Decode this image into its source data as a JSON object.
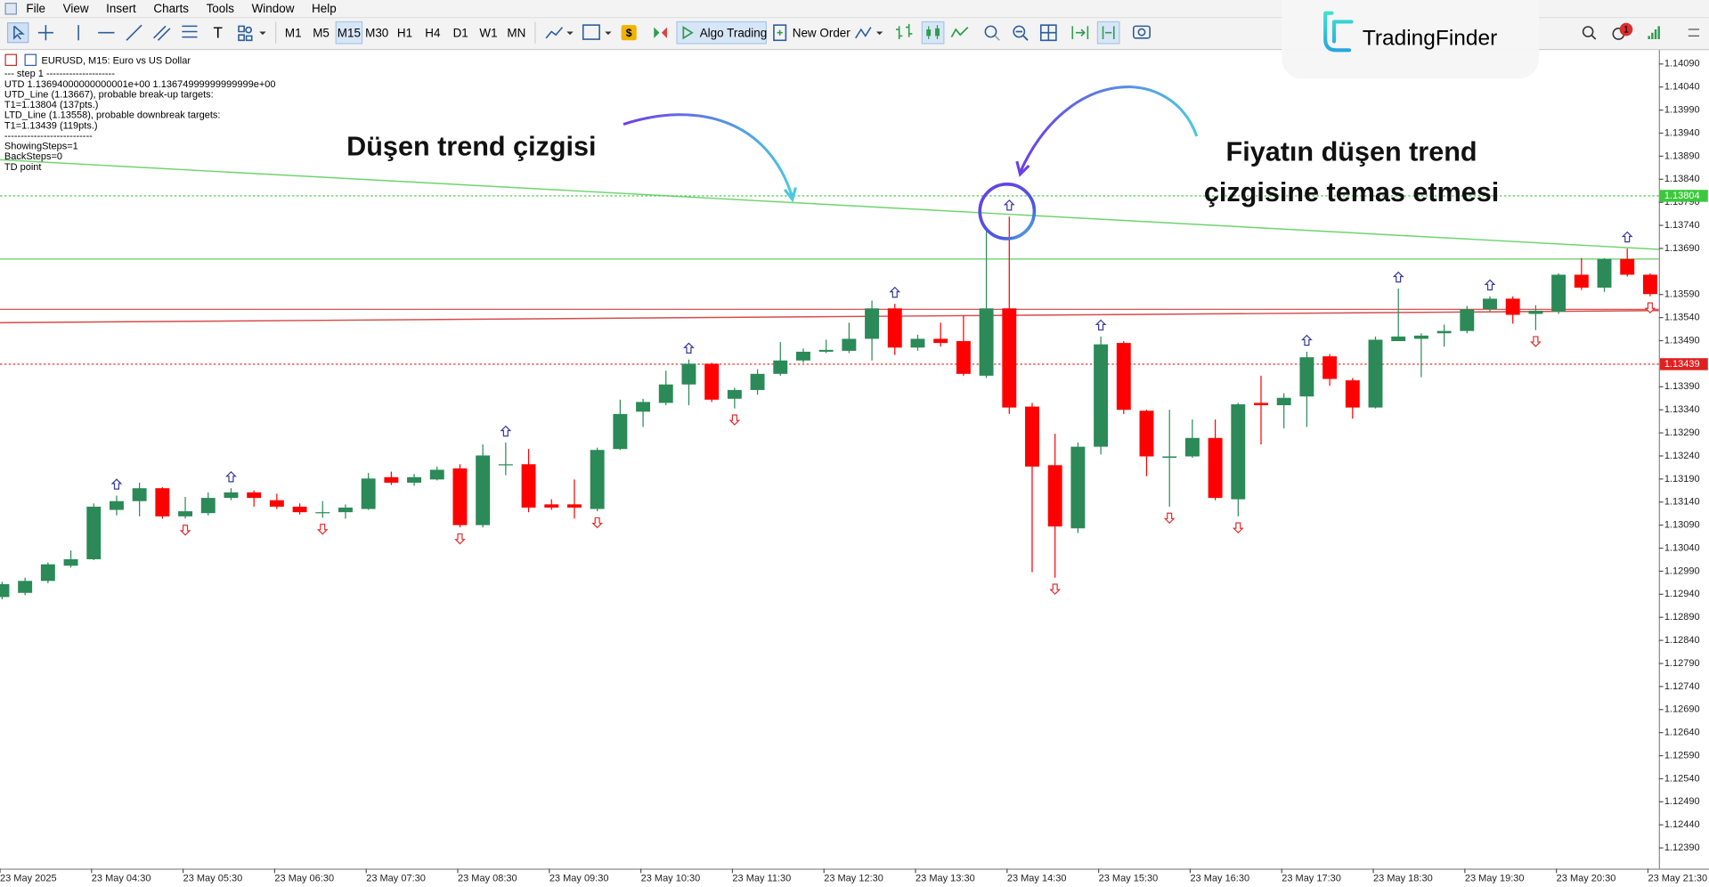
{
  "menu": [
    "File",
    "View",
    "Insert",
    "Charts",
    "Tools",
    "Window",
    "Help"
  ],
  "toolbar": {
    "timeframes": [
      "M1",
      "M5",
      "M15",
      "M30",
      "H1",
      "H4",
      "D1",
      "W1",
      "MN"
    ],
    "active_timeframe": 2,
    "algo": "Algo Trading",
    "order": "New Order",
    "notification_count": 1
  },
  "logo": "TradingFinder",
  "chart_data": {
    "type": "candlestick",
    "symbol_title": "EURUSD, M15:  Euro vs US Dollar",
    "info_lines": [
      "---   step 1   ---------------------",
      "UTD 1.13694000000000001e+00  1.13674999999999999e+00",
      "UTD_Line (1.13667), probable break-up targets:",
      "T1=1.13804 (137pts.)",
      "LTD_Line (1.13558), probable downbreak targets:",
      "T1=1.13439 (119pts.)",
      "---------------------------",
      "ShowingSteps=1",
      "BackSteps=0",
      "TD point"
    ],
    "annotations": [
      "Düşen trend çizgisi",
      "Fiyatın düşen trend",
      "çizgisine temas etmesi"
    ],
    "categories": [
      "23 May 2025",
      null,
      null,
      null,
      "23 May 04:30",
      null,
      null,
      null,
      "23 May 05:30",
      null,
      null,
      null,
      "23 May 06:30",
      null,
      null,
      null,
      "23 May 07:30",
      null,
      null,
      null,
      "23 May 08:30",
      null,
      null,
      null,
      "23 May 09:30",
      null,
      null,
      null,
      "23 May 10:30",
      null,
      null,
      null,
      "23 May 11:30",
      null,
      null,
      null,
      "23 May 12:30",
      null,
      null,
      null,
      "23 May 13:30",
      null,
      null,
      null,
      "23 May 14:30",
      null,
      null,
      null,
      "23 May 15:30",
      null,
      null,
      null,
      "23 May 16:30",
      null,
      null,
      null,
      "23 May 17:30",
      null,
      null,
      null,
      "23 May 18:30",
      null,
      null,
      null,
      "23 May 19:30",
      null,
      null,
      null,
      "23 May 20:30",
      null,
      null,
      null,
      "23 May 21:30"
    ],
    "open": [
      1.12934,
      1.12943,
      1.12969,
      1.13002,
      1.13016,
      1.13123,
      1.13142,
      1.1317,
      1.13109,
      1.13116,
      1.13149,
      1.13161,
      1.13144,
      1.1313,
      1.13116,
      1.13118,
      1.13125,
      1.13194,
      1.13182,
      1.13189,
      1.13213,
      1.1309,
      1.1322,
      1.13222,
      1.13135,
      1.13135,
      1.13125,
      1.13255,
      1.13336,
      1.13355,
      1.13395,
      1.1344,
      1.13364,
      1.13383,
      1.13418,
      1.13447,
      1.13466,
      1.13468,
      1.13494,
      1.1356,
      1.13475,
      1.13494,
      1.13489,
      1.13414,
      1.1356,
      1.13347,
      1.1322,
      1.13083,
      1.1326,
      1.13485,
      1.13338,
      1.13236,
      1.13239,
      1.13279,
      1.13146,
      1.13355,
      1.1335,
      1.13369,
      1.13456,
      1.13404,
      1.13345,
      1.13489,
      1.13494,
      1.13506,
      1.13511,
      1.13558,
      1.13581,
      1.13548,
      1.13553,
      1.13633,
      1.13605,
      1.13667,
      1.13633
    ],
    "high": [
      1.12967,
      1.12976,
      1.13009,
      1.13035,
      1.13137,
      1.13154,
      1.13182,
      1.13172,
      1.13151,
      1.13161,
      1.1317,
      1.13165,
      1.13158,
      1.13137,
      1.13142,
      1.13135,
      1.13203,
      1.13206,
      1.13201,
      1.13217,
      1.13222,
      1.13265,
      1.13269,
      1.13255,
      1.13146,
      1.13189,
      1.13258,
      1.13362,
      1.13364,
      1.13425,
      1.13449,
      1.13442,
      1.13388,
      1.13428,
      1.13487,
      1.13473,
      1.13492,
      1.13529,
      1.13577,
      1.1357,
      1.13503,
      1.13529,
      1.13544,
      1.13728,
      1.13759,
      1.13355,
      1.13288,
      1.13269,
      1.13499,
      1.13489,
      1.1334,
      1.1334,
      1.13319,
      1.13319,
      1.13355,
      1.13414,
      1.13376,
      1.13466,
      1.13461,
      1.13409,
      1.13499,
      1.13603,
      1.13506,
      1.13525,
      1.13565,
      1.13586,
      1.13586,
      1.13567,
      1.13636,
      1.13669,
      1.13669,
      1.1369,
      1.13636
    ],
    "low": [
      1.12929,
      1.12938,
      1.12964,
      1.12998,
      1.13014,
      1.13111,
      1.13109,
      1.13104,
      1.13104,
      1.13111,
      1.13144,
      1.1313,
      1.13125,
      1.13113,
      1.13106,
      1.13104,
      1.13123,
      1.13177,
      1.13175,
      1.13187,
      1.13085,
      1.13085,
      1.13198,
      1.13118,
      1.13123,
      1.13104,
      1.1312,
      1.13253,
      1.13303,
      1.1335,
      1.1335,
      1.13357,
      1.13343,
      1.13373,
      1.13414,
      1.13442,
      1.13463,
      1.13463,
      1.13447,
      1.13459,
      1.13468,
      1.13477,
      1.13414,
      1.13409,
      1.13331,
      1.12988,
      1.12976,
      1.13073,
      1.13243,
      1.13331,
      1.13196,
      1.1313,
      1.13236,
      1.13144,
      1.13109,
      1.13265,
      1.133,
      1.13303,
      1.13392,
      1.13321,
      1.13343,
      1.13489,
      1.13411,
      1.13477,
      1.13506,
      1.13553,
      1.13527,
      1.13513,
      1.13548,
      1.136,
      1.13596,
      1.13629,
      1.13586
    ],
    "close": [
      1.12962,
      1.12969,
      1.13005,
      1.13016,
      1.1313,
      1.13142,
      1.1317,
      1.13109,
      1.1312,
      1.13149,
      1.13161,
      1.13149,
      1.1313,
      1.13118,
      1.13118,
      1.13128,
      1.13191,
      1.13182,
      1.13194,
      1.1321,
      1.1309,
      1.13241,
      1.13222,
      1.13128,
      1.13128,
      1.13128,
      1.13253,
      1.13331,
      1.13357,
      1.13395,
      1.1344,
      1.13362,
      1.13383,
      1.13418,
      1.13447,
      1.13466,
      1.1347,
      1.13494,
      1.1356,
      1.13475,
      1.13494,
      1.13485,
      1.13418,
      1.1356,
      1.13345,
      1.13217,
      1.13087,
      1.1326,
      1.13482,
      1.1334,
      1.13239,
      1.13239,
      1.13279,
      1.13149,
      1.13352,
      1.1335,
      1.13366,
      1.13454,
      1.13407,
      1.13345,
      1.13492,
      1.13499,
      1.13501,
      1.13511,
      1.13558,
      1.13581,
      1.13546,
      1.13555,
      1.13633,
      1.13605,
      1.13667,
      1.13633,
      1.13591
    ],
    "up_color": "#2b8a57",
    "down_color": "#ff0000",
    "up_signals": [
      5,
      10,
      22,
      30,
      39,
      44,
      48,
      57,
      61,
      65,
      71
    ],
    "down_signals": [
      8,
      14,
      20,
      26,
      32,
      46,
      51,
      54,
      67,
      72
    ],
    "up_signal_color": "#3a3aa0",
    "down_signal_color": "#e03030",
    "levels": [
      {
        "value": 1.13804,
        "color": "#3cc83c",
        "style": "dotted",
        "axis_label": true
      },
      {
        "value": 1.13667,
        "color": "#66cc66",
        "style": "solid",
        "axis_label": false
      },
      {
        "value": 1.13558,
        "color": "#d04040",
        "style": "solid",
        "axis_label": false
      },
      {
        "value": 1.13439,
        "color": "#e02020",
        "style": "dotted",
        "axis_label": true
      }
    ],
    "trend_lines": [
      {
        "from": [
          0,
          1.13882
        ],
        "to": [
          72,
          1.13689
        ],
        "color": "#6fd36f"
      },
      {
        "from": [
          0,
          1.13529
        ],
        "to": [
          72,
          1.13555
        ],
        "color": "#d84a4a"
      }
    ],
    "ylim": [
      1.12345,
      1.1412
    ],
    "yticks": [
      {
        "value": 1.1409,
        "label": "1.14090"
      },
      {
        "value": 1.1404,
        "label": "1.14040"
      },
      {
        "value": 1.1399,
        "label": "1.13990"
      },
      {
        "value": 1.1394,
        "label": "1.13940"
      },
      {
        "value": 1.1389,
        "label": "1.13890"
      },
      {
        "value": 1.1384,
        "label": "1.13840"
      },
      {
        "value": 1.1379,
        "label": "1.13790"
      },
      {
        "value": 1.1374,
        "label": "1.13740"
      },
      {
        "value": 1.1369,
        "label": "1.13690"
      },
      {
        "value": 1.1359,
        "label": "1.13590"
      },
      {
        "value": 1.1354,
        "label": "1.13540"
      },
      {
        "value": 1.1349,
        "label": "1.13490"
      },
      {
        "value": 1.1339,
        "label": "1.13390"
      },
      {
        "value": 1.1334,
        "label": "1.13340"
      },
      {
        "value": 1.1329,
        "label": "1.13290"
      },
      {
        "value": 1.1324,
        "label": "1.13240"
      },
      {
        "value": 1.1319,
        "label": "1.13190"
      },
      {
        "value": 1.1314,
        "label": "1.13140"
      },
      {
        "value": 1.1309,
        "label": "1.13090"
      },
      {
        "value": 1.1304,
        "label": "1.13040"
      },
      {
        "value": 1.1299,
        "label": "1.12990"
      },
      {
        "value": 1.1294,
        "label": "1.12940"
      },
      {
        "value": 1.1289,
        "label": "1.12890"
      },
      {
        "value": 1.1284,
        "label": "1.12840"
      },
      {
        "value": 1.1279,
        "label": "1.12790"
      },
      {
        "value": 1.1274,
        "label": "1.12740"
      },
      {
        "value": 1.1269,
        "label": "1.12690"
      },
      {
        "value": 1.1264,
        "label": "1.12640"
      },
      {
        "value": 1.1259,
        "label": "1.12590"
      },
      {
        "value": 1.1254,
        "label": "1.12540"
      },
      {
        "value": 1.1249,
        "label": "1.12490"
      },
      {
        "value": 1.1244,
        "label": "1.12440"
      },
      {
        "value": 1.1239,
        "label": "1.12390"
      }
    ],
    "grid": false
  }
}
